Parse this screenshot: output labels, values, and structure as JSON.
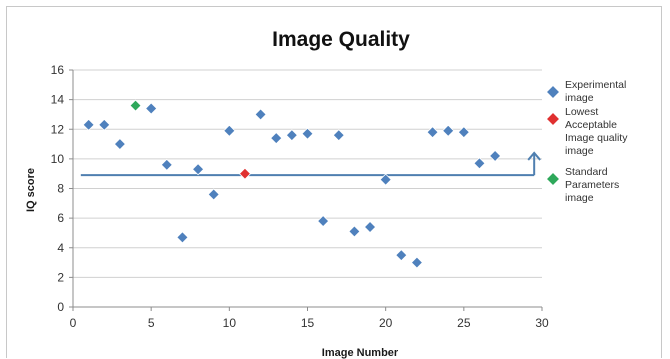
{
  "chart_data": {
    "type": "scatter",
    "title": "Image Quality",
    "xlabel": "Image Number",
    "ylabel": "IQ score",
    "xlim": [
      0,
      30
    ],
    "ylim": [
      0,
      16
    ],
    "xticks": [
      0,
      5,
      10,
      15,
      20,
      25,
      30
    ],
    "yticks": [
      0,
      2,
      4,
      6,
      8,
      10,
      12,
      14,
      16
    ],
    "grid": "horizontal",
    "legend_position": "right",
    "series": [
      {
        "name": "Experimental image",
        "color": "#4f81bd",
        "marker": "diamond",
        "points": [
          [
            1,
            12.3
          ],
          [
            2,
            12.3
          ],
          [
            3,
            11.0
          ],
          [
            5,
            13.4
          ],
          [
            6,
            9.6
          ],
          [
            7,
            4.7
          ],
          [
            8,
            9.3
          ],
          [
            9,
            7.6
          ],
          [
            10,
            11.9
          ],
          [
            12,
            13.0
          ],
          [
            13,
            11.4
          ],
          [
            14,
            11.6
          ],
          [
            15,
            11.7
          ],
          [
            16,
            5.8
          ],
          [
            17,
            11.6
          ],
          [
            18,
            5.1
          ],
          [
            19,
            5.4
          ],
          [
            20,
            8.6
          ],
          [
            21,
            3.5
          ],
          [
            22,
            3.0
          ],
          [
            23,
            11.8
          ],
          [
            24,
            11.9
          ],
          [
            25,
            11.8
          ],
          [
            26,
            9.7
          ],
          [
            27,
            10.2
          ]
        ]
      },
      {
        "name": "Lowest Acceptable Image quality image",
        "color": "#e03030",
        "marker": "diamond",
        "points": [
          [
            11,
            9.0
          ]
        ]
      },
      {
        "name": "Standard Parameters image",
        "color": "#2ea85a",
        "marker": "diamond",
        "points": [
          [
            4,
            13.6
          ]
        ]
      }
    ],
    "reference_line": {
      "y": 8.9,
      "x_start": 0.5,
      "x_end": 29.5,
      "color": "#4f7fb0"
    },
    "arrow": {
      "x": 29.5,
      "y_from": 8.9,
      "y_to": 10.4,
      "color": "#4f7fb0"
    }
  },
  "legend": {
    "items": [
      {
        "lines": [
          "Experimental",
          "image"
        ],
        "color": "#4f81bd"
      },
      {
        "lines": [
          "Lowest",
          "Acceptable",
          "Image quality",
          "image"
        ],
        "color": "#e03030"
      },
      {
        "lines": [
          "Standard",
          "Parameters",
          "image"
        ],
        "color": "#2ea85a"
      }
    ]
  }
}
